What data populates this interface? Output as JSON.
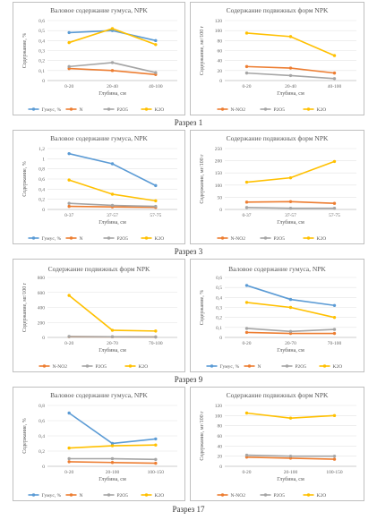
{
  "sections": [
    "Разрез 1",
    "Разрез 3",
    "Разрез 9",
    "Разрез 17"
  ],
  "chart_data": [
    {
      "type": "line",
      "title": "Валовое содержание гумуса, NPK",
      "xlabel": "Глубина, см",
      "ylabel": "Содержание, %",
      "categories": [
        "0-20",
        "20-40",
        "40-100"
      ],
      "ylim": [
        0,
        0.6
      ],
      "yticks": [
        "0",
        "0,1",
        "0,2",
        "0,3",
        "0,4",
        "0,5",
        "0,6"
      ],
      "series": [
        {
          "name": "Гумус, %",
          "color": "#5b9bd5",
          "values": [
            0.48,
            0.5,
            0.4
          ]
        },
        {
          "name": "N",
          "color": "#ed7d31",
          "values": [
            0.12,
            0.1,
            0.06
          ]
        },
        {
          "name": "P2O5",
          "color": "#a5a5a5",
          "values": [
            0.14,
            0.18,
            0.08
          ]
        },
        {
          "name": "K2O",
          "color": "#ffc000",
          "values": [
            0.38,
            0.52,
            0.36
          ]
        }
      ]
    },
    {
      "type": "line",
      "title": "Содержание подвижных форм NPK",
      "xlabel": "Глубина, см",
      "ylabel": "Содержание, мг/100 г",
      "categories": [
        "0-20",
        "20-40",
        "40-100"
      ],
      "ylim": [
        0,
        120
      ],
      "yticks": [
        "0",
        "20",
        "40",
        "60",
        "80",
        "100",
        "120"
      ],
      "series": [
        {
          "name": "N-NO2",
          "color": "#ed7d31",
          "values": [
            28,
            25,
            15
          ]
        },
        {
          "name": "P2O5",
          "color": "#a5a5a5",
          "values": [
            15,
            10,
            4
          ]
        },
        {
          "name": "K2O",
          "color": "#ffc000",
          "values": [
            95,
            88,
            50
          ]
        }
      ]
    },
    {
      "type": "line",
      "title": "Валовое содержание гумуса, NPK",
      "xlabel": "Глубина, см",
      "ylabel": "Содержание, %",
      "categories": [
        "0-37",
        "37-57",
        "57-75"
      ],
      "ylim": [
        0,
        1.2
      ],
      "yticks": [
        "0",
        "0,2",
        "0,4",
        "0,6",
        "0,8",
        "1",
        "1,2"
      ],
      "series": [
        {
          "name": "Гумус, %",
          "color": "#5b9bd5",
          "values": [
            1.1,
            0.9,
            0.47
          ]
        },
        {
          "name": "N",
          "color": "#ed7d31",
          "values": [
            0.06,
            0.05,
            0.04
          ]
        },
        {
          "name": "P2O5",
          "color": "#a5a5a5",
          "values": [
            0.12,
            0.08,
            0.06
          ]
        },
        {
          "name": "K2O",
          "color": "#ffc000",
          "values": [
            0.58,
            0.3,
            0.17
          ]
        }
      ]
    },
    {
      "type": "line",
      "title": "Содержание подвижных форм NPK",
      "xlabel": "Глубина, см",
      "ylabel": "Содержание, мг/100 г",
      "categories": [
        "0-37",
        "37-57",
        "57-75"
      ],
      "ylim": [
        0,
        250
      ],
      "yticks": [
        "0",
        "50",
        "100",
        "150",
        "200",
        "250"
      ],
      "series": [
        {
          "name": "N-NO2",
          "color": "#ed7d31",
          "values": [
            30,
            32,
            25
          ]
        },
        {
          "name": "P2O5",
          "color": "#a5a5a5",
          "values": [
            8,
            5,
            5
          ]
        },
        {
          "name": "K2O",
          "color": "#ffc000",
          "values": [
            112,
            130,
            197
          ]
        }
      ]
    },
    {
      "type": "line",
      "title": "Содержание подвижных форм NPK",
      "xlabel": "Глубина, см",
      "ylabel": "Содержание, мг/100 г",
      "categories": [
        "0-20",
        "20-70",
        "70-100"
      ],
      "ylim": [
        0,
        800
      ],
      "yticks": [
        "0",
        "200",
        "400",
        "600",
        "800"
      ],
      "series": [
        {
          "name": "N-NO2",
          "color": "#ed7d31",
          "values": [
            10,
            8,
            6
          ]
        },
        {
          "name": "P2O5",
          "color": "#a5a5a5",
          "values": [
            12,
            9,
            6
          ]
        },
        {
          "name": "K2O",
          "color": "#ffc000",
          "values": [
            560,
            95,
            85
          ]
        }
      ]
    },
    {
      "type": "line",
      "title": "Валовое содержание гумуса, NPK",
      "xlabel": "Глубина, см",
      "ylabel": "Содержание, %",
      "categories": [
        "0-20",
        "20-70",
        "70-100"
      ],
      "ylim": [
        0,
        0.6
      ],
      "yticks": [
        "0",
        "0,1",
        "0,2",
        "0,3",
        "0,4",
        "0,5",
        "0,6"
      ],
      "series": [
        {
          "name": "Гумус, %",
          "color": "#5b9bd5",
          "values": [
            0.52,
            0.38,
            0.32
          ]
        },
        {
          "name": "N",
          "color": "#ed7d31",
          "values": [
            0.05,
            0.04,
            0.04
          ]
        },
        {
          "name": "P2O5",
          "color": "#a5a5a5",
          "values": [
            0.09,
            0.06,
            0.08
          ]
        },
        {
          "name": "K2O",
          "color": "#ffc000",
          "values": [
            0.35,
            0.3,
            0.2
          ]
        }
      ]
    },
    {
      "type": "line",
      "title": "Валовое содержание гумуса, NPK",
      "xlabel": "Глубина, см",
      "ylabel": "Содержание, %",
      "categories": [
        "0-20",
        "20-100",
        "100-150"
      ],
      "ylim": [
        0,
        0.8
      ],
      "yticks": [
        "0",
        "0,2",
        "0,4",
        "0,6",
        "0,8"
      ],
      "series": [
        {
          "name": "Гумус, %",
          "color": "#5b9bd5",
          "values": [
            0.7,
            0.3,
            0.36
          ]
        },
        {
          "name": "N",
          "color": "#ed7d31",
          "values": [
            0.06,
            0.05,
            0.04
          ]
        },
        {
          "name": "P2O5",
          "color": "#a5a5a5",
          "values": [
            0.1,
            0.1,
            0.09
          ]
        },
        {
          "name": "K2O",
          "color": "#ffc000",
          "values": [
            0.24,
            0.27,
            0.28
          ]
        }
      ]
    },
    {
      "type": "line",
      "title": "Содержание подвижных форм NPK",
      "xlabel": "Глубина, см",
      "ylabel": "Содержание, мг/100 г",
      "categories": [
        "0-20",
        "20-100",
        "100-150"
      ],
      "ylim": [
        0,
        120
      ],
      "yticks": [
        "0",
        "20",
        "40",
        "60",
        "80",
        "100",
        "120"
      ],
      "series": [
        {
          "name": "N-NO2",
          "color": "#ed7d31",
          "values": [
            18,
            16,
            14
          ]
        },
        {
          "name": "P2O5",
          "color": "#a5a5a5",
          "values": [
            22,
            20,
            20
          ]
        },
        {
          "name": "K2O",
          "color": "#ffc000",
          "values": [
            105,
            95,
            100
          ]
        }
      ]
    }
  ]
}
